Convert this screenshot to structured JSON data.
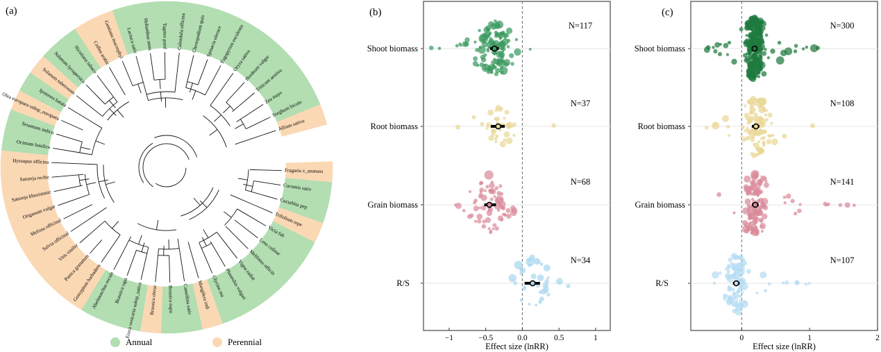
{
  "colors": {
    "annual": "#b2deb2",
    "perennial": "#fbd8b4",
    "shoot": "#3c9a5f",
    "shoot_dark": "#1f7a3f",
    "root": "#e9d796",
    "grain": "#d98a9a",
    "rs": "#a9d7ef",
    "rs_c": "#b5dcf2"
  },
  "panel_a": {
    "label": "(a)",
    "legend": [
      {
        "label": "Annual",
        "key": "annual"
      },
      {
        "label": "Perennial",
        "key": "perennial"
      }
    ],
    "species": [
      {
        "name": "Fragaria x_ananass",
        "type": "perennial"
      },
      {
        "name": "Cucumis sativ",
        "type": "annual"
      },
      {
        "name": "Cucurbita pep",
        "type": "annual"
      },
      {
        "name": "Trifolium repe",
        "type": "perennial"
      },
      {
        "name": "Vicia fab",
        "type": "annual"
      },
      {
        "name": "Lens culinar",
        "type": "annual"
      },
      {
        "name": "Melilotus officin",
        "type": "annual"
      },
      {
        "name": "Vigna radiat",
        "type": "annual"
      },
      {
        "name": "Phaseolus vulgari",
        "type": "annual"
      },
      {
        "name": "Glycine ma",
        "type": "annual"
      },
      {
        "name": "Mangifera indi",
        "type": "perennial"
      },
      {
        "name": "Camellina sativ",
        "type": "annual"
      },
      {
        "name": "Brassica napu",
        "type": "annual"
      },
      {
        "name": "Brassica olerac",
        "type": "perennial"
      },
      {
        "name": "Eruca vesicaria subsp_sativa",
        "type": "annual"
      },
      {
        "name": "Brassica rapa",
        "type": "annual"
      },
      {
        "name": "Abelmoschus escule",
        "type": "annual"
      },
      {
        "name": "Gossypium barbadens",
        "type": "perennial"
      },
      {
        "name": "Punica granatum",
        "type": "perennial"
      },
      {
        "name": "Vitis vinifer",
        "type": "perennial"
      },
      {
        "name": "Salvia officinal",
        "type": "perennial"
      },
      {
        "name": "Melissa officinal",
        "type": "perennial"
      },
      {
        "name": "Origanum vulgar",
        "type": "perennial"
      },
      {
        "name": "Satureja khuzistanic",
        "type": "perennial"
      },
      {
        "name": "Satureja rechir",
        "type": "perennial"
      },
      {
        "name": "Hyssopus officina",
        "type": "perennial"
      },
      {
        "name": "Ocimum basilicu",
        "type": "annual"
      },
      {
        "name": "Sesamum indicu",
        "type": "annual"
      },
      {
        "name": "Olea europaea subsp_europaea",
        "type": "perennial"
      },
      {
        "name": "Ipomoea batata",
        "type": "annual"
      },
      {
        "name": "Solanum tuberosum",
        "type": "perennial"
      },
      {
        "name": "Solanum lycopersicu",
        "type": "annual"
      },
      {
        "name": "Nicotiana tabacu",
        "type": "annual"
      },
      {
        "name": "Coffea arabic",
        "type": "perennial"
      },
      {
        "name": "Gentiana macrophyl",
        "type": "perennial"
      },
      {
        "name": "Lactuca sativ",
        "type": "annual"
      },
      {
        "name": "Helianthus annu",
        "type": "annual"
      },
      {
        "name": "Tagetes patul",
        "type": "annual"
      },
      {
        "name": "Calendula officina",
        "type": "annual"
      },
      {
        "name": "Chenopodium quin",
        "type": "annual"
      },
      {
        "name": "Spinacia olerace",
        "type": "annual"
      },
      {
        "name": "Fagopyrum esculentu",
        "type": "annual"
      },
      {
        "name": "Oryza sativa",
        "type": "annual"
      },
      {
        "name": "Hordeum vulgar",
        "type": "annual"
      },
      {
        "name": "Triticum aestivu",
        "type": "annual"
      },
      {
        "name": "Zea mays",
        "type": "annual"
      },
      {
        "name": "Sorghum bicolo",
        "type": "annual"
      },
      {
        "name": "Allium sativu",
        "type": "perennial"
      }
    ],
    "clusters": [
      [
        0,
        2
      ],
      [
        1,
        2
      ],
      [
        3,
        9
      ],
      [
        4,
        6
      ],
      [
        7,
        9
      ],
      [
        8,
        9
      ],
      [
        3,
        10
      ],
      [
        11,
        16
      ],
      [
        11,
        13
      ],
      [
        12,
        13
      ],
      [
        14,
        16
      ],
      [
        14,
        15
      ],
      [
        17,
        19
      ],
      [
        20,
        25
      ],
      [
        21,
        25
      ],
      [
        22,
        24
      ],
      [
        23,
        24
      ],
      [
        26,
        29
      ],
      [
        26,
        27
      ],
      [
        30,
        33
      ],
      [
        30,
        32
      ],
      [
        31,
        32
      ],
      [
        34,
        35
      ],
      [
        35,
        38
      ],
      [
        36,
        37
      ],
      [
        35,
        39
      ],
      [
        39,
        41
      ],
      [
        39,
        40
      ],
      [
        42,
        47
      ],
      [
        42,
        45
      ],
      [
        43,
        44
      ],
      [
        45,
        46
      ]
    ]
  },
  "chart_data": [
    {
      "type": "scatter",
      "panel": "(b)",
      "title": "",
      "xlabel": "Effect size (lnRR)",
      "ylabel": "",
      "xlim": [
        -1.35,
        1.2
      ],
      "xticks": [
        -1,
        -0.5,
        0.0,
        0.5,
        1
      ],
      "xtick_labels": [
        "−1",
        "−0.5",
        "0.0",
        "0.5",
        "1"
      ],
      "reference_line": 0,
      "categories": [
        "Shoot biomass",
        "Root biomass",
        "Grain biomass",
        "R/S"
      ],
      "series": [
        {
          "name": "Shoot biomass",
          "n_label": "N=117",
          "n": 117,
          "mean": -0.38,
          "ci": [
            -0.44,
            -0.32
          ],
          "range": [
            -1.3,
            0.18
          ],
          "color_key": "shoot"
        },
        {
          "name": "Root biomass",
          "n_label": "N=37",
          "n": 37,
          "mean": -0.33,
          "ci": [
            -0.43,
            -0.24
          ],
          "range": [
            -1.03,
            0.5
          ],
          "color_key": "root"
        },
        {
          "name": "Grain biomass",
          "n_label": "N=68",
          "n": 68,
          "mean": -0.45,
          "ci": [
            -0.52,
            -0.36
          ],
          "range": [
            -1.2,
            0.03
          ],
          "color_key": "grain"
        },
        {
          "name": "R/S",
          "n_label": "N=34",
          "n": 34,
          "mean": 0.14,
          "ci": [
            0.03,
            0.24
          ],
          "range": [
            -0.52,
            0.98
          ],
          "color_key": "rs"
        }
      ]
    },
    {
      "type": "scatter",
      "panel": "(c)",
      "title": "",
      "xlabel": "Effect size (lnRR)",
      "ylabel": "",
      "xlim": [
        -0.75,
        2.0
      ],
      "xticks": [
        0,
        1,
        2
      ],
      "xtick_labels": [
        "0",
        "1",
        "2"
      ],
      "reference_line": 0,
      "categories": [
        "Shoot biomass",
        "Root biomass",
        "Grain biomass",
        "R/S"
      ],
      "series": [
        {
          "name": "Shoot biomass",
          "n_label": "N=300",
          "n": 300,
          "mean": 0.19,
          "ci": [
            0.16,
            0.22
          ],
          "range": [
            -0.56,
            1.22
          ],
          "color_key": "shoot_dark"
        },
        {
          "name": "Root biomass",
          "n_label": "N=108",
          "n": 108,
          "mean": 0.21,
          "ci": [
            0.15,
            0.26
          ],
          "range": [
            -0.62,
            1.08
          ],
          "color_key": "root"
        },
        {
          "name": "Grain biomass",
          "n_label": "N=141",
          "n": 141,
          "mean": 0.2,
          "ci": [
            0.15,
            0.25
          ],
          "range": [
            -0.52,
            1.72
          ],
          "color_key": "grain"
        },
        {
          "name": "R/S",
          "n_label": "N=107",
          "n": 107,
          "mean": -0.08,
          "ci": [
            -0.13,
            -0.03
          ],
          "range": [
            -0.5,
            1.0
          ],
          "color_key": "rs_c"
        }
      ]
    }
  ]
}
